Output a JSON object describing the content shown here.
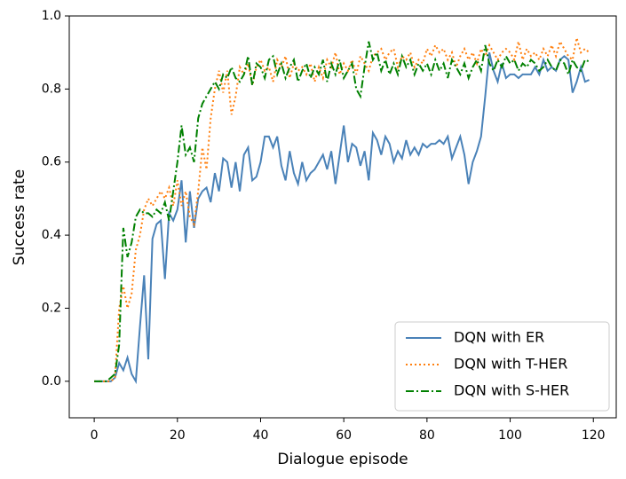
{
  "chart_data": {
    "type": "line",
    "xlabel": "Dialogue episode",
    "ylabel": "Success rate",
    "x": [
      0,
      1,
      2,
      3,
      4,
      5,
      6,
      7,
      8,
      9,
      10,
      11,
      12,
      13,
      14,
      15,
      16,
      17,
      18,
      19,
      20,
      21,
      22,
      23,
      24,
      25,
      26,
      27,
      28,
      29,
      30,
      31,
      32,
      33,
      34,
      35,
      36,
      37,
      38,
      39,
      40,
      41,
      42,
      43,
      44,
      45,
      46,
      47,
      48,
      49,
      50,
      51,
      52,
      53,
      54,
      55,
      56,
      57,
      58,
      59,
      60,
      61,
      62,
      63,
      64,
      65,
      66,
      67,
      68,
      69,
      70,
      71,
      72,
      73,
      74,
      75,
      76,
      77,
      78,
      79,
      80,
      81,
      82,
      83,
      84,
      85,
      86,
      87,
      88,
      89,
      90,
      91,
      92,
      93,
      94,
      95,
      96,
      97,
      98,
      99,
      100,
      101,
      102,
      103,
      104,
      105,
      106,
      107,
      108,
      109,
      110,
      111,
      112,
      113,
      114,
      115,
      116,
      117,
      118,
      119
    ],
    "series": [
      {
        "name": "DQN with ER",
        "color": "#4a82b8",
        "linestyle": "solid",
        "values": [
          0,
          0,
          0,
          0,
          0,
          0.01,
          0.05,
          0.03,
          0.065,
          0.02,
          0,
          0.15,
          0.29,
          0.06,
          0.39,
          0.43,
          0.44,
          0.28,
          0.46,
          0.44,
          0.47,
          0.55,
          0.38,
          0.52,
          0.42,
          0.5,
          0.52,
          0.53,
          0.49,
          0.57,
          0.52,
          0.61,
          0.6,
          0.53,
          0.6,
          0.52,
          0.62,
          0.64,
          0.55,
          0.56,
          0.6,
          0.67,
          0.67,
          0.64,
          0.67,
          0.59,
          0.55,
          0.63,
          0.57,
          0.54,
          0.6,
          0.55,
          0.57,
          0.58,
          0.6,
          0.62,
          0.58,
          0.63,
          0.54,
          0.62,
          0.7,
          0.6,
          0.65,
          0.64,
          0.59,
          0.63,
          0.55,
          0.68,
          0.66,
          0.62,
          0.67,
          0.65,
          0.6,
          0.63,
          0.61,
          0.66,
          0.62,
          0.64,
          0.62,
          0.65,
          0.64,
          0.65,
          0.65,
          0.66,
          0.65,
          0.67,
          0.61,
          0.64,
          0.67,
          0.62,
          0.54,
          0.6,
          0.63,
          0.67,
          0.78,
          0.9,
          0.85,
          0.82,
          0.87,
          0.83,
          0.84,
          0.84,
          0.83,
          0.84,
          0.84,
          0.84,
          0.86,
          0.84,
          0.88,
          0.85,
          0.86,
          0.85,
          0.88,
          0.89,
          0.88,
          0.79,
          0.82,
          0.86,
          0.82,
          0.825
        ]
      },
      {
        "name": "DQN with T-HER",
        "color": "#ff7f0e",
        "linestyle": "dotted",
        "values": [
          0,
          0,
          0,
          0,
          0,
          0.01,
          0.2,
          0.26,
          0.2,
          0.24,
          0.36,
          0.4,
          0.47,
          0.5,
          0.48,
          0.5,
          0.52,
          0.5,
          0.53,
          0.48,
          0.55,
          0.48,
          0.52,
          0.45,
          0.43,
          0.52,
          0.64,
          0.58,
          0.72,
          0.8,
          0.85,
          0.79,
          0.85,
          0.73,
          0.78,
          0.86,
          0.84,
          0.87,
          0.81,
          0.86,
          0.88,
          0.85,
          0.86,
          0.82,
          0.88,
          0.86,
          0.89,
          0.83,
          0.87,
          0.85,
          0.86,
          0.84,
          0.87,
          0.82,
          0.86,
          0.83,
          0.88,
          0.86,
          0.9,
          0.84,
          0.87,
          0.85,
          0.88,
          0.84,
          0.89,
          0.87,
          0.85,
          0.89,
          0.9,
          0.91,
          0.88,
          0.9,
          0.91,
          0.86,
          0.89,
          0.88,
          0.9,
          0.86,
          0.88,
          0.87,
          0.91,
          0.89,
          0.92,
          0.9,
          0.91,
          0.88,
          0.9,
          0.86,
          0.89,
          0.91,
          0.88,
          0.9,
          0.87,
          0.91,
          0.89,
          0.92,
          0.9,
          0.88,
          0.9,
          0.91,
          0.9,
          0.88,
          0.93,
          0.88,
          0.91,
          0.89,
          0.9,
          0.88,
          0.91,
          0.89,
          0.92,
          0.89,
          0.93,
          0.91,
          0.89,
          0.88,
          0.94,
          0.9,
          0.91,
          0.9
        ]
      },
      {
        "name": "DQN with S-HER",
        "color": "#008000",
        "linestyle": "dashdot",
        "values": [
          0,
          0,
          0,
          0,
          0.01,
          0.02,
          0.1,
          0.42,
          0.34,
          0.38,
          0.45,
          0.47,
          0.46,
          0.46,
          0.45,
          0.47,
          0.46,
          0.49,
          0.44,
          0.52,
          0.6,
          0.7,
          0.62,
          0.64,
          0.6,
          0.72,
          0.76,
          0.78,
          0.8,
          0.82,
          0.8,
          0.84,
          0.83,
          0.86,
          0.83,
          0.82,
          0.84,
          0.89,
          0.81,
          0.87,
          0.86,
          0.83,
          0.88,
          0.89,
          0.84,
          0.87,
          0.83,
          0.86,
          0.88,
          0.82,
          0.85,
          0.87,
          0.83,
          0.86,
          0.84,
          0.88,
          0.82,
          0.87,
          0.84,
          0.88,
          0.83,
          0.85,
          0.87,
          0.8,
          0.78,
          0.86,
          0.93,
          0.88,
          0.9,
          0.85,
          0.88,
          0.84,
          0.87,
          0.84,
          0.89,
          0.86,
          0.88,
          0.84,
          0.87,
          0.85,
          0.87,
          0.84,
          0.88,
          0.85,
          0.87,
          0.83,
          0.88,
          0.86,
          0.84,
          0.87,
          0.83,
          0.86,
          0.88,
          0.85,
          0.92,
          0.87,
          0.85,
          0.88,
          0.86,
          0.89,
          0.87,
          0.88,
          0.85,
          0.87,
          0.86,
          0.88,
          0.87,
          0.85,
          0.86,
          0.88,
          0.86,
          0.85,
          0.88,
          0.87,
          0.84,
          0.88,
          0.86,
          0.85,
          0.88,
          0.875
        ]
      }
    ],
    "xlim": [
      -6,
      125.5
    ],
    "ylim": [
      -0.1,
      1.0
    ],
    "xticks": [
      0,
      20,
      40,
      60,
      80,
      100,
      120
    ],
    "yticks": [
      {
        "value": 0,
        "label": "0.0"
      },
      {
        "value": 0.2,
        "label": "0.2"
      },
      {
        "value": 0.4,
        "label": "0.4"
      },
      {
        "value": 0.6,
        "label": "0.6"
      },
      {
        "value": 0.8,
        "label": "0.8"
      },
      {
        "value": 1.0,
        "label": "1.0"
      }
    ],
    "legend": "lower right"
  }
}
